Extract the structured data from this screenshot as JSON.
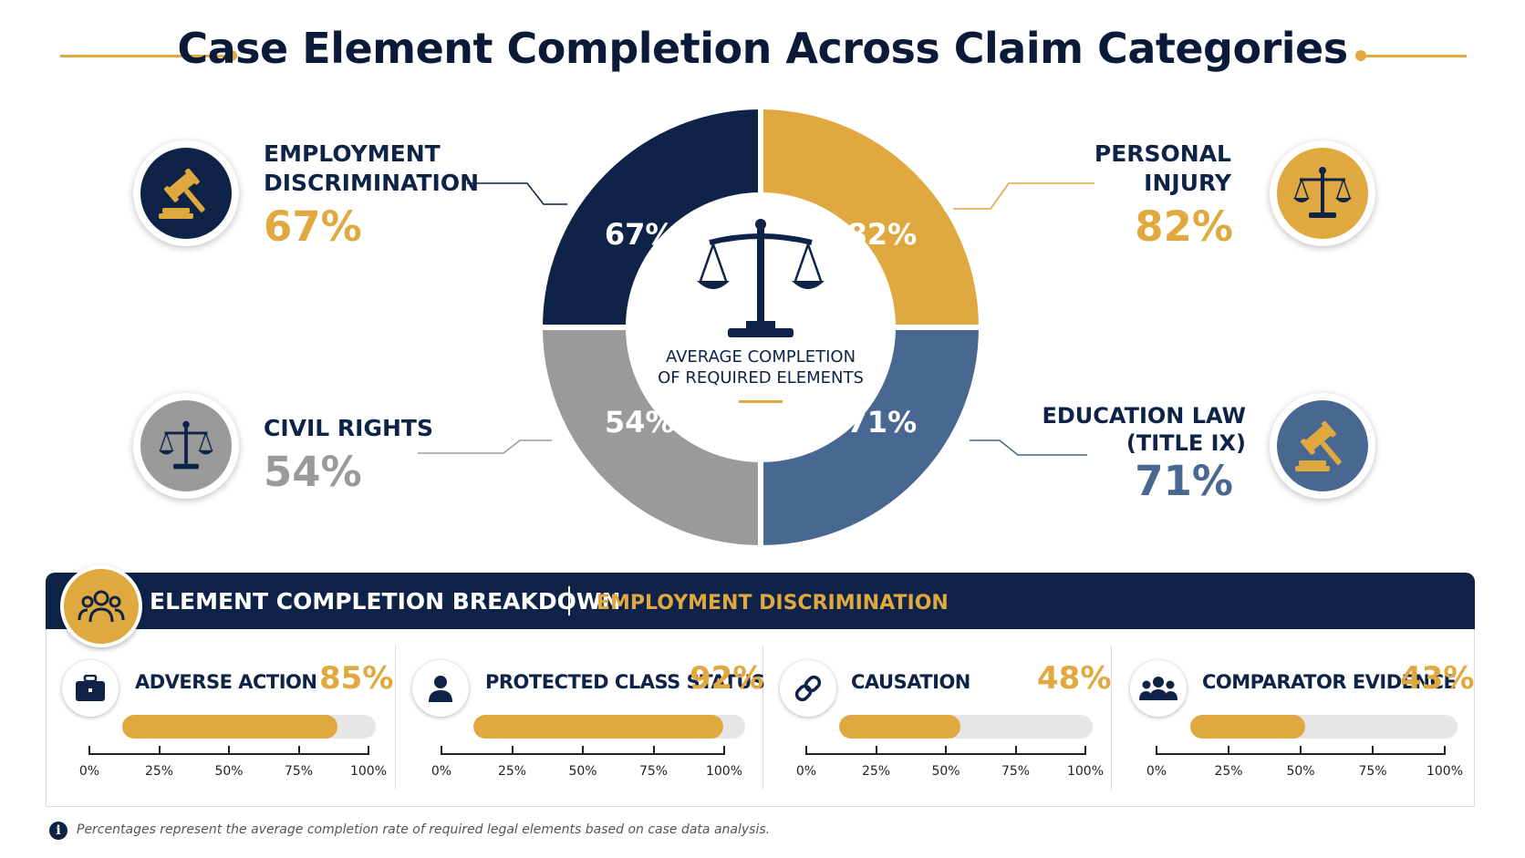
{
  "title": "Case Element Completion Across Claim Categories",
  "colors": {
    "navy": "#0e2347",
    "gold": "#e0a93f",
    "gray": "#9a9a9a",
    "steel": "#486891",
    "track": "#e6e6e6"
  },
  "center": {
    "label_line1": "AVERAGE COMPLETION",
    "label_line2": "OF REQUIRED ELEMENTS",
    "icon": "scales-icon"
  },
  "categories": [
    {
      "name": "EMPLOYMENT\nDISCRIMINATION",
      "value_label": "67%",
      "icon": "gavel-icon"
    },
    {
      "name": "PERSONAL\nINJURY",
      "value_label": "82%",
      "icon": "scales-icon"
    },
    {
      "name": "EDUCATION LAW\n(TITLE IX)",
      "value_label": "71%",
      "icon": "gavel-icon"
    },
    {
      "name": "CIVIL RIGHTS",
      "value_label": "54%",
      "icon": "scales-icon"
    }
  ],
  "chart_data": [
    {
      "type": "pie",
      "title": "Case Element Completion Across Claim Categories",
      "categories": [
        "Employment Discrimination",
        "Personal Injury",
        "Education Law (Title IX)",
        "Civil Rights"
      ],
      "values": [
        67,
        82,
        71,
        54
      ],
      "labels": [
        "67%",
        "82%",
        "71%",
        "54%"
      ],
      "colors": [
        "#0e2347",
        "#e0a93f",
        "#486891",
        "#9a9a9a"
      ],
      "legend": "none"
    },
    {
      "type": "bar",
      "orientation": "horizontal",
      "title": "ELEMENT COMPLETION BREAKDOWN",
      "subtitle": "EMPLOYMENT DISCRIMINATION",
      "categories": [
        "ADVERSE ACTION",
        "PROTECTED CLASS STATUS",
        "CAUSATION",
        "COMPARATOR EVIDENCE"
      ],
      "values": [
        85,
        92,
        48,
        43
      ],
      "xlim": [
        0,
        100
      ],
      "ticks": [
        "0%",
        "25%",
        "50%",
        "75%",
        "100%"
      ]
    }
  ],
  "breakdown": {
    "title": "ELEMENT COMPLETION BREAKDOWN",
    "subtitle": "EMPLOYMENT DISCRIMINATION",
    "items": [
      {
        "label": "ADVERSE ACTION",
        "value": 85,
        "value_label": "85%",
        "icon": "briefcase-icon"
      },
      {
        "label": "PROTECTED CLASS STATUS",
        "value": 92,
        "value_label": "92%",
        "icon": "person-icon"
      },
      {
        "label": "CAUSATION",
        "value": 48,
        "value_label": "48%",
        "icon": "link-icon"
      },
      {
        "label": "COMPARATOR EVIDENCE",
        "value": 43,
        "value_label": "43%",
        "icon": "group-icon"
      }
    ],
    "ticks": [
      "0%",
      "25%",
      "50%",
      "75%",
      "100%"
    ]
  },
  "footnote": "Percentages represent the average completion rate of required legal elements based on case data analysis."
}
